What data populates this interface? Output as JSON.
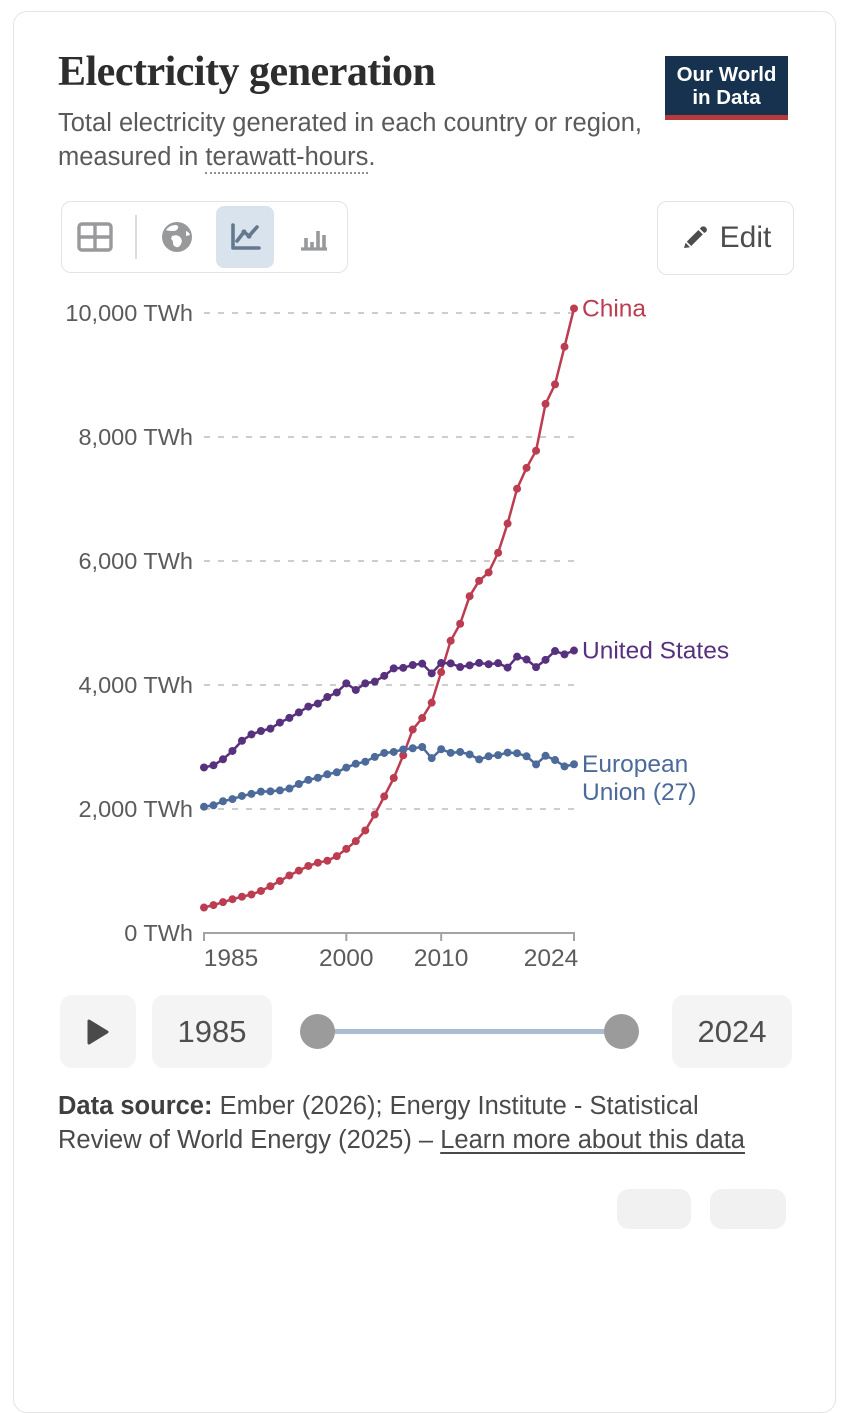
{
  "header": {
    "title": "Electricity generation",
    "subtitle_before_link": "Total electricity generated in each country or region, measured in ",
    "subtitle_link": "terawatt-hours",
    "subtitle_after_link": ".",
    "logo_line1": "Our World",
    "logo_line2": "in Data",
    "logo_bg_color": "#16324f",
    "logo_bar_color": "#b8393c"
  },
  "toolbar": {
    "edit_label": "Edit",
    "views": [
      {
        "icon": "table-icon",
        "selected": false
      },
      {
        "icon": "globe-icon",
        "selected": false
      },
      {
        "icon": "line-chart-icon",
        "selected": true
      },
      {
        "icon": "bar-chart-icon",
        "selected": false
      }
    ],
    "selected_bg_color": "#d9e3ee"
  },
  "chart_data": {
    "type": "line",
    "title": "Electricity generation",
    "unit": "TWh",
    "xlabel": "",
    "ylabel": "",
    "ylim": [
      0,
      10000
    ],
    "x_range": [
      1985,
      2024
    ],
    "grid": true,
    "grid_style": "dashed",
    "legend_position": "line-end-labels",
    "years": [
      1985,
      1986,
      1987,
      1988,
      1989,
      1990,
      1991,
      1992,
      1993,
      1994,
      1995,
      1996,
      1997,
      1998,
      1999,
      2000,
      2001,
      2002,
      2003,
      2004,
      2005,
      2006,
      2007,
      2008,
      2009,
      2010,
      2011,
      2012,
      2013,
      2014,
      2015,
      2016,
      2017,
      2018,
      2019,
      2020,
      2021,
      2022,
      2023,
      2024
    ],
    "yticks": [
      {
        "value": 0,
        "label": "0 TWh"
      },
      {
        "value": 2000,
        "label": "2,000 TWh"
      },
      {
        "value": 4000,
        "label": "4,000 TWh"
      },
      {
        "value": 6000,
        "label": "6,000 TWh"
      },
      {
        "value": 8000,
        "label": "8,000 TWh"
      },
      {
        "value": 10000,
        "label": "10,000 TWh"
      }
    ],
    "xticks": [
      {
        "value": 1985,
        "label": "1985"
      },
      {
        "value": 2000,
        "label": "2000"
      },
      {
        "value": 2010,
        "label": "2010"
      },
      {
        "value": 2024,
        "label": "2024"
      }
    ],
    "series": [
      {
        "name": "China",
        "label_lines": [
          "China"
        ],
        "color": "#bc3d51",
        "values": [
          411,
          450,
          497,
          545,
          585,
          621,
          678,
          754,
          839,
          928,
          1007,
          1081,
          1134,
          1166,
          1239,
          1356,
          1481,
          1654,
          1911,
          2203,
          2500,
          2866,
          3282,
          3467,
          3715,
          4207,
          4713,
          4988,
          5432,
          5680,
          5815,
          6133,
          6604,
          7166,
          7503,
          7779,
          8534,
          8849,
          9456,
          10073
        ]
      },
      {
        "name": "United States",
        "label_lines": [
          "United States"
        ],
        "color": "#57317e",
        "values": [
          2670,
          2705,
          2802,
          2936,
          3101,
          3203,
          3258,
          3296,
          3394,
          3470,
          3558,
          3652,
          3700,
          3806,
          3880,
          4026,
          3920,
          4026,
          4054,
          4148,
          4268,
          4277,
          4322,
          4344,
          4188,
          4354,
          4349,
          4290,
          4317,
          4356,
          4335,
          4352,
          4281,
          4457,
          4411,
          4288,
          4406,
          4548,
          4494,
          4556
        ]
      },
      {
        "name": "European Union (27)",
        "label_lines": [
          "European",
          "Union (27)"
        ],
        "color": "#4c6a9a",
        "values": [
          2037,
          2060,
          2125,
          2160,
          2210,
          2243,
          2280,
          2285,
          2300,
          2330,
          2403,
          2470,
          2504,
          2560,
          2592,
          2668,
          2729,
          2763,
          2840,
          2904,
          2920,
          2960,
          2980,
          3000,
          2820,
          2964,
          2906,
          2920,
          2880,
          2800,
          2850,
          2869,
          2910,
          2900,
          2850,
          2720,
          2858,
          2790,
          2687,
          2722
        ]
      }
    ]
  },
  "timeline": {
    "start_year": "1985",
    "end_year": "2024"
  },
  "footer": {
    "label": "Data source:",
    "text": " Ember (2026); Energy Institute - Statistical Review of World Energy (2025) – ",
    "link": "Learn more about this data"
  }
}
